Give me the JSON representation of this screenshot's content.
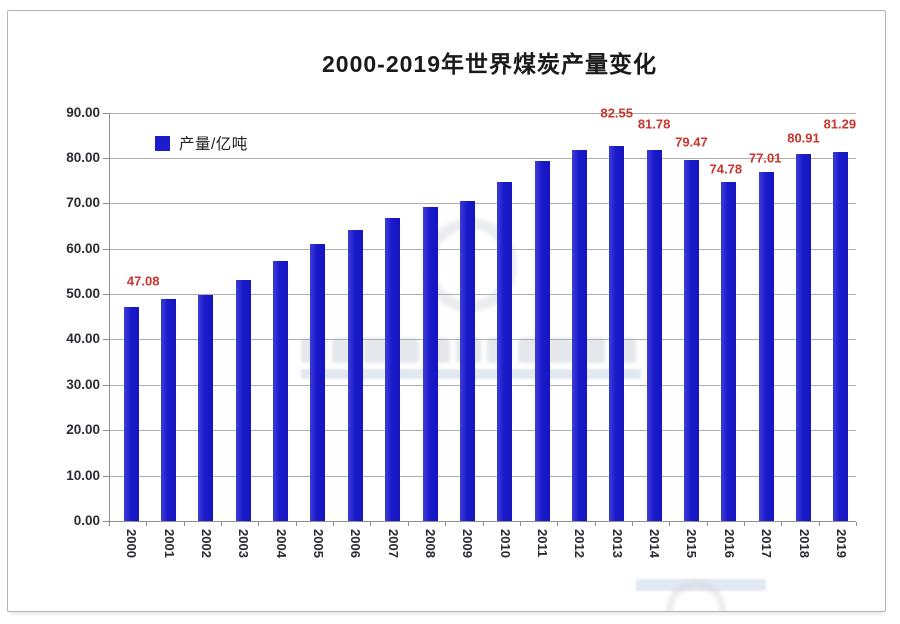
{
  "title": "2000-2019年世界煤炭产量变化",
  "legend": {
    "label": "产量/亿吨"
  },
  "colors": {
    "bar": "#1c1ccd",
    "value_label": "#c9342c",
    "gridline": "#b0b0b0",
    "axis": "#8f8f8f",
    "tick_text": "#2b2b33",
    "title_text": "#1a1a1a"
  },
  "chart_data": {
    "type": "bar",
    "title": "2000-2019年世界煤炭产量变化",
    "legend": "产量/亿吨",
    "legend_position": "top-left-inside",
    "grid": true,
    "xlabel": "",
    "ylabel": "",
    "ylim": [
      0,
      90
    ],
    "ytick_step": 10,
    "ytick_labels": [
      "0.00",
      "10.00",
      "20.00",
      "30.00",
      "40.00",
      "50.00",
      "60.00",
      "70.00",
      "80.00",
      "90.00"
    ],
    "categories": [
      "2000",
      "2001",
      "2002",
      "2003",
      "2004",
      "2005",
      "2006",
      "2007",
      "2008",
      "2009",
      "2010",
      "2011",
      "2012",
      "2013",
      "2014",
      "2015",
      "2016",
      "2017",
      "2018",
      "2019"
    ],
    "values": [
      47.08,
      49.0,
      49.7,
      53.0,
      57.3,
      61.1,
      64.2,
      66.8,
      69.2,
      70.5,
      74.7,
      79.3,
      81.7,
      82.55,
      81.78,
      79.47,
      74.78,
      77.01,
      80.91,
      81.29
    ],
    "data_labels": [
      "47.08",
      "",
      "",
      "",
      "",
      "",
      "",
      "",
      "",
      "",
      "",
      "",
      "",
      "82.55",
      "81.78",
      "79.47",
      "74.78",
      "77.01",
      "80.91",
      "81.29"
    ]
  }
}
